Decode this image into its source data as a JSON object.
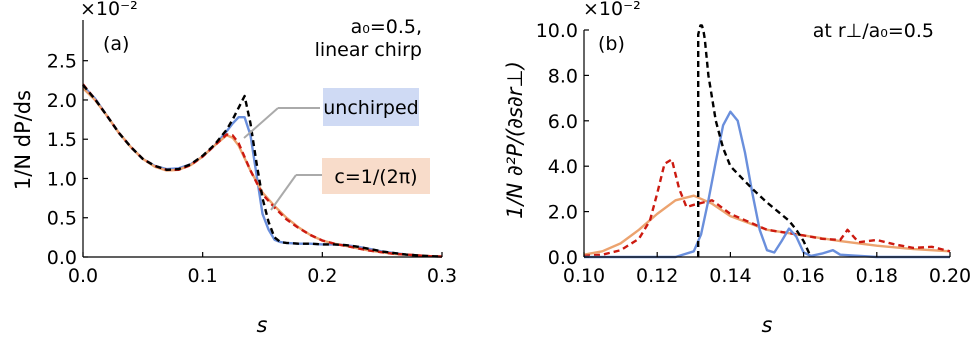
{
  "colors": {
    "blue": "#6a8fdc",
    "orange": "#eca36f",
    "red": "#cc1a10",
    "black": "#000000",
    "blue_box": "#cfdaf4",
    "orange_box": "#f8dcca",
    "pointer": "#aaaaaa"
  },
  "chart_data": [
    {
      "type": "line",
      "panel_label": "(a)",
      "xlabel": "s",
      "ylabel": "1/N dP/ds",
      "scale_label": "×10⁻²",
      "annotation_lines": [
        "a₀=0.5,",
        "linear chirp"
      ],
      "xlim": [
        0,
        0.3
      ],
      "ylim": [
        0,
        2.7
      ],
      "xticks": [
        0.0,
        0.1,
        0.2,
        0.3
      ],
      "xtick_labels": [
        "0.0",
        "0.1",
        "0.2",
        "0.3"
      ],
      "yticks": [
        0.0,
        0.5,
        1.0,
        1.5,
        2.0,
        2.5
      ],
      "ytick_labels": [
        "0.0",
        "0.5",
        "1.0",
        "1.5",
        "2.0",
        "2.5"
      ],
      "legend_labels": [
        {
          "text": "unchirped",
          "series": "blue",
          "box": "blue_box"
        },
        {
          "text": "c=1/(2π)",
          "series": "orange",
          "box": "orange_box"
        }
      ],
      "series": [
        {
          "color": "blue",
          "dash": "solid",
          "x": [
            0,
            0.01,
            0.02,
            0.03,
            0.04,
            0.05,
            0.06,
            0.07,
            0.08,
            0.09,
            0.1,
            0.11,
            0.12,
            0.125,
            0.13,
            0.135,
            0.14,
            0.145,
            0.15,
            0.155,
            0.16,
            0.165,
            0.17,
            0.18,
            0.19,
            0.2,
            0.21,
            0.22,
            0.23,
            0.24,
            0.25,
            0.26,
            0.27,
            0.28,
            0.29,
            0.3
          ],
          "y": [
            2.18,
            2.02,
            1.8,
            1.58,
            1.4,
            1.25,
            1.16,
            1.12,
            1.13,
            1.18,
            1.28,
            1.42,
            1.6,
            1.7,
            1.78,
            1.78,
            1.55,
            1.05,
            0.55,
            0.35,
            0.22,
            0.19,
            0.18,
            0.17,
            0.17,
            0.16,
            0.16,
            0.15,
            0.13,
            0.1,
            0.07,
            0.05,
            0.03,
            0.02,
            0.01,
            0.005
          ]
        },
        {
          "color": "orange",
          "dash": "solid",
          "x": [
            0,
            0.01,
            0.02,
            0.03,
            0.04,
            0.05,
            0.06,
            0.07,
            0.08,
            0.09,
            0.1,
            0.11,
            0.12,
            0.125,
            0.13,
            0.14,
            0.15,
            0.16,
            0.17,
            0.18,
            0.19,
            0.2,
            0.21,
            0.22,
            0.23,
            0.24,
            0.25,
            0.26,
            0.27,
            0.28,
            0.29,
            0.3
          ],
          "y": [
            2.15,
            2.0,
            1.8,
            1.58,
            1.4,
            1.25,
            1.15,
            1.1,
            1.11,
            1.17,
            1.28,
            1.42,
            1.55,
            1.52,
            1.42,
            1.1,
            0.82,
            0.65,
            0.5,
            0.38,
            0.28,
            0.21,
            0.17,
            0.14,
            0.11,
            0.08,
            0.06,
            0.04,
            0.03,
            0.02,
            0.01,
            0.005
          ]
        },
        {
          "color": "red",
          "dash": "dash",
          "x": [
            0,
            0.01,
            0.02,
            0.03,
            0.04,
            0.05,
            0.06,
            0.07,
            0.08,
            0.09,
            0.1,
            0.11,
            0.12,
            0.125,
            0.13,
            0.14,
            0.15,
            0.16,
            0.17,
            0.18,
            0.19,
            0.2,
            0.21,
            0.22,
            0.23,
            0.24,
            0.25,
            0.26,
            0.27,
            0.28,
            0.29,
            0.3
          ],
          "y": [
            2.2,
            2.01,
            1.8,
            1.58,
            1.4,
            1.25,
            1.16,
            1.11,
            1.11,
            1.17,
            1.28,
            1.42,
            1.56,
            1.55,
            1.45,
            1.1,
            0.8,
            0.63,
            0.48,
            0.37,
            0.28,
            0.21,
            0.17,
            0.14,
            0.11,
            0.08,
            0.06,
            0.04,
            0.03,
            0.02,
            0.01,
            0.005
          ]
        },
        {
          "color": "black",
          "dash": "dash",
          "x": [
            0,
            0.01,
            0.02,
            0.03,
            0.04,
            0.05,
            0.06,
            0.07,
            0.08,
            0.09,
            0.1,
            0.11,
            0.12,
            0.125,
            0.13,
            0.135,
            0.14,
            0.145,
            0.15,
            0.155,
            0.16,
            0.165,
            0.17,
            0.18,
            0.19,
            0.2,
            0.21,
            0.22,
            0.23,
            0.24,
            0.25,
            0.26,
            0.27,
            0.28,
            0.29,
            0.3
          ],
          "y": [
            2.19,
            2.01,
            1.8,
            1.58,
            1.4,
            1.25,
            1.16,
            1.11,
            1.12,
            1.18,
            1.29,
            1.43,
            1.62,
            1.75,
            1.9,
            2.05,
            1.7,
            1.2,
            0.75,
            0.45,
            0.25,
            0.19,
            0.18,
            0.17,
            0.17,
            0.16,
            0.16,
            0.15,
            0.13,
            0.1,
            0.07,
            0.05,
            0.03,
            0.02,
            0.01,
            0.005
          ]
        }
      ]
    },
    {
      "type": "line",
      "panel_label": "(b)",
      "xlabel": "s",
      "ylabel": "1/N ∂²P/(∂s∂r⊥)",
      "scale_label": "×10⁻²",
      "annotation_lines": [
        "at r⊥/a₀=0.5"
      ],
      "xlim": [
        0.1,
        0.2
      ],
      "ylim": [
        0,
        10
      ],
      "xticks": [
        0.1,
        0.12,
        0.14,
        0.16,
        0.18,
        0.2
      ],
      "xtick_labels": [
        "0.10",
        "0.12",
        "0.14",
        "0.16",
        "0.18",
        "0.20"
      ],
      "yticks": [
        0,
        2,
        4,
        6,
        8,
        10
      ],
      "ytick_labels": [
        "0.0",
        "2.0",
        "4.0",
        "6.0",
        "8.0",
        "10.0"
      ],
      "series": [
        {
          "color": "orange",
          "dash": "solid",
          "x": [
            0.1,
            0.105,
            0.11,
            0.115,
            0.12,
            0.125,
            0.13,
            0.135,
            0.14,
            0.15,
            0.16,
            0.17,
            0.18,
            0.19,
            0.2
          ],
          "y": [
            0.1,
            0.25,
            0.6,
            1.2,
            1.9,
            2.5,
            2.7,
            2.35,
            1.8,
            1.2,
            0.95,
            0.7,
            0.5,
            0.35,
            0.25
          ]
        },
        {
          "color": "red",
          "dash": "dash",
          "x": [
            0.1,
            0.105,
            0.11,
            0.115,
            0.118,
            0.12,
            0.122,
            0.124,
            0.126,
            0.128,
            0.13,
            0.135,
            0.14,
            0.15,
            0.16,
            0.165,
            0.17,
            0.172,
            0.175,
            0.18,
            0.185,
            0.19,
            0.195,
            0.2
          ],
          "y": [
            0.05,
            0.1,
            0.3,
            0.8,
            1.6,
            2.8,
            4.1,
            4.3,
            3.0,
            2.2,
            2.3,
            2.5,
            1.9,
            1.2,
            0.95,
            0.8,
            0.75,
            1.2,
            0.65,
            0.75,
            0.55,
            0.4,
            0.45,
            0.25
          ]
        },
        {
          "color": "blue",
          "dash": "solid",
          "x": [
            0.1,
            0.125,
            0.13,
            0.132,
            0.134,
            0.136,
            0.138,
            0.14,
            0.142,
            0.144,
            0.146,
            0.148,
            0.15,
            0.152,
            0.154,
            0.156,
            0.158,
            0.16,
            0.162,
            0.165,
            0.168,
            0.17,
            0.18,
            0.19,
            0.2
          ],
          "y": [
            0.0,
            0.0,
            0.25,
            1.0,
            2.5,
            4.2,
            5.8,
            6.4,
            6.0,
            4.6,
            2.8,
            1.2,
            0.3,
            0.2,
            0.7,
            1.25,
            0.9,
            0.2,
            0.05,
            0.15,
            0.3,
            0.1,
            0.0,
            0.0,
            0.0
          ]
        },
        {
          "color": "black",
          "dash": "dash",
          "x": [
            0.1312,
            0.1312,
            0.1318,
            0.1322,
            0.1326,
            0.133,
            0.134,
            0.136,
            0.138,
            0.14,
            0.143,
            0.146,
            0.15,
            0.153,
            0.156,
            0.158,
            0.16,
            0.162
          ],
          "y": [
            0.0,
            9.8,
            10.2,
            10.2,
            10.0,
            9.6,
            8.0,
            6.0,
            4.8,
            4.0,
            3.5,
            3.0,
            2.4,
            2.0,
            1.6,
            1.2,
            0.7,
            0.0
          ]
        }
      ]
    }
  ]
}
